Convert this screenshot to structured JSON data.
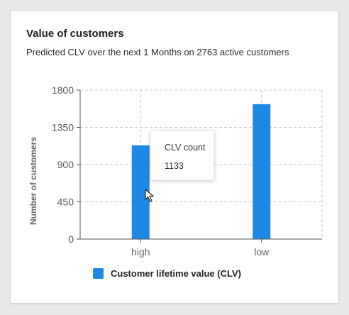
{
  "card": {
    "title": "Value of customers",
    "subtitle": "Predicted CLV over the next 1 Months on 2763 active customers"
  },
  "chart_data": {
    "type": "bar",
    "title": "Value of customers",
    "subtitle": "Predicted CLV over the next 1 Months on 2763 active customers",
    "categories": [
      "high",
      "low"
    ],
    "series": [
      {
        "name": "Customer lifetime value (CLV)",
        "values": [
          1133,
          1630
        ],
        "color": "#1e88e5"
      }
    ],
    "xlabel": "",
    "ylabel": "Number of customers",
    "ylim": [
      0,
      1800
    ],
    "yticks": [
      0,
      450,
      900,
      1350,
      1800
    ],
    "grid": true,
    "legend": "bottom"
  },
  "tooltip": {
    "label": "CLV count",
    "value": "1133"
  },
  "legend": {
    "label": "Customer lifetime value (CLV)",
    "color": "#1e88e5"
  }
}
